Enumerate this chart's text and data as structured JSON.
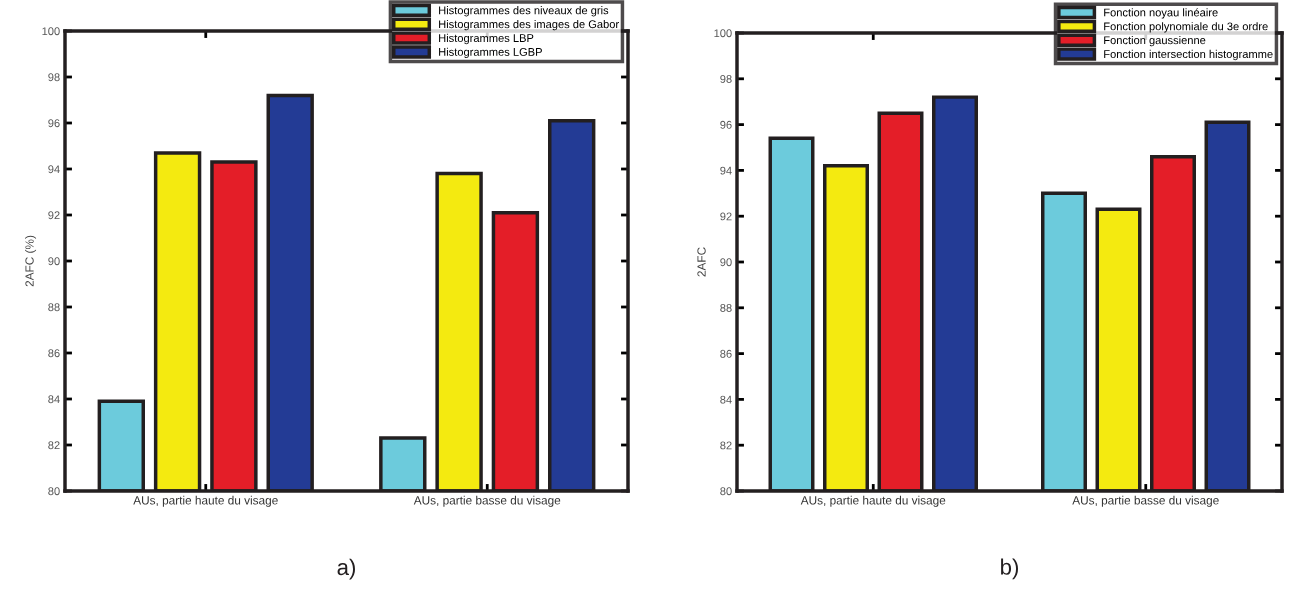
{
  "chart_data": [
    {
      "type": "bar",
      "ylabel": "2AFC (%)",
      "categories": [
        "AUs, partie haute du visage",
        "AUs, partie basse du visage"
      ],
      "series": [
        {
          "name": "Histogrammes des niveaux de gris",
          "color": "#6ccbdc",
          "values": [
            83.9,
            82.3
          ]
        },
        {
          "name": "Histogrammes des images de Gabor",
          "color": "#f4ea10",
          "values": [
            94.7,
            93.8
          ]
        },
        {
          "name": "Histogrammes LBP",
          "color": "#e41e28",
          "values": [
            94.3,
            92.1
          ]
        },
        {
          "name": "Histogrammes LGBP",
          "color": "#233b95",
          "values": [
            97.2,
            96.1
          ]
        }
      ],
      "ylim": [
        80,
        100
      ],
      "yticks": [
        80,
        82,
        84,
        86,
        88,
        90,
        92,
        94,
        96,
        98,
        100
      ],
      "grid": false,
      "legend": "top right",
      "annotations": [
        "a)"
      ]
    },
    {
      "type": "bar",
      "ylabel": "2AFC",
      "categories": [
        "AUs, partie haute du visage",
        "AUs, partie basse du visage"
      ],
      "series": [
        {
          "name": "Fonction noyau linéaire",
          "color": "#6ccbdc",
          "values": [
            95.4,
            93.0
          ]
        },
        {
          "name": "Fonction polynomiale du 3e ordre",
          "color": "#f4ea10",
          "values": [
            94.2,
            92.3
          ]
        },
        {
          "name": "Fonction gaussienne",
          "color": "#e41e28",
          "values": [
            96.5,
            94.6
          ]
        },
        {
          "name": "Fonction intersection histogramme",
          "color": "#233b95",
          "values": [
            97.2,
            96.1
          ]
        }
      ],
      "ylim": [
        80,
        100
      ],
      "yticks": [
        80,
        82,
        84,
        86,
        88,
        90,
        92,
        94,
        96,
        98,
        100
      ],
      "grid": false,
      "legend": "top right",
      "annotations": [
        "b)"
      ]
    }
  ]
}
